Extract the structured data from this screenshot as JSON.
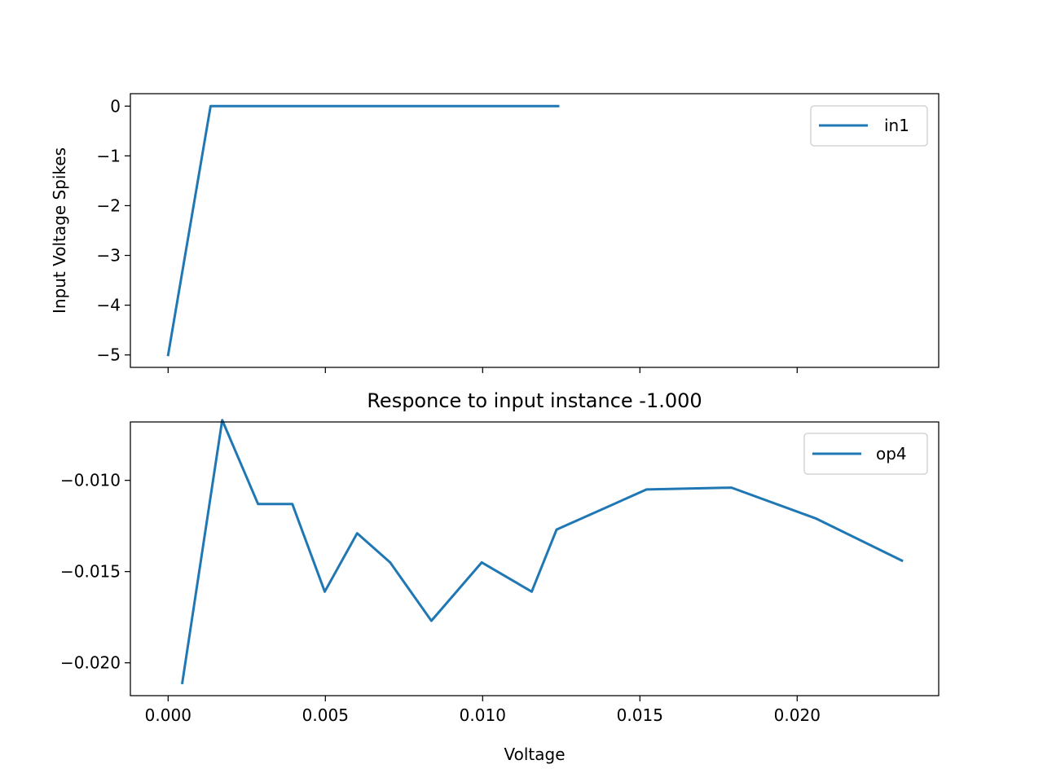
{
  "chart_data": [
    {
      "type": "line",
      "title": "",
      "xlabel": "",
      "ylabel": "Input Voltage Spikes",
      "xlim": [
        -0.0012,
        0.0245
      ],
      "ylim": [
        -5.25,
        0.25
      ],
      "xticks": [
        0.0,
        0.005,
        0.01,
        0.015,
        0.02
      ],
      "show_xtick_labels": false,
      "yticks": [
        0,
        -1,
        -2,
        -3,
        -4,
        -5
      ],
      "ytick_labels": [
        "0",
        "−1",
        "−2",
        "−3",
        "−4",
        "−5"
      ],
      "grid": false,
      "legend_position": "upper right",
      "series": [
        {
          "name": "in1",
          "color": "#1f77b4",
          "x": [
            0.0,
            0.00135,
            0.0124
          ],
          "y": [
            -5.0,
            0.0,
            0.0
          ]
        }
      ]
    },
    {
      "type": "line",
      "title": "Responce to input instance -1.000",
      "xlabel": "Voltage",
      "ylabel": "",
      "xlim": [
        -0.0012,
        0.0245
      ],
      "ylim": [
        -0.0218,
        -0.0068
      ],
      "xticks": [
        0.0,
        0.005,
        0.01,
        0.015,
        0.02
      ],
      "xtick_labels": [
        "0.000",
        "0.005",
        "0.010",
        "0.015",
        "0.020"
      ],
      "yticks": [
        -0.01,
        -0.015,
        -0.02
      ],
      "ytick_labels": [
        "−0.010",
        "−0.015",
        "−0.020"
      ],
      "grid": false,
      "legend_position": "upper right",
      "series": [
        {
          "name": "op4",
          "color": "#1f77b4",
          "x": [
            0.00045,
            0.00172,
            0.00286,
            0.00395,
            0.00498,
            0.00601,
            0.00706,
            0.00837,
            0.00997,
            0.01156,
            0.01235,
            0.01521,
            0.01791,
            0.02061,
            0.02333
          ],
          "y": [
            -0.0211,
            -0.0067,
            -0.0113,
            -0.0113,
            -0.0161,
            -0.0129,
            -0.0145,
            -0.0177,
            -0.0145,
            -0.0161,
            -0.0127,
            -0.0105,
            -0.0104,
            -0.0121,
            -0.0144
          ]
        }
      ]
    }
  ]
}
